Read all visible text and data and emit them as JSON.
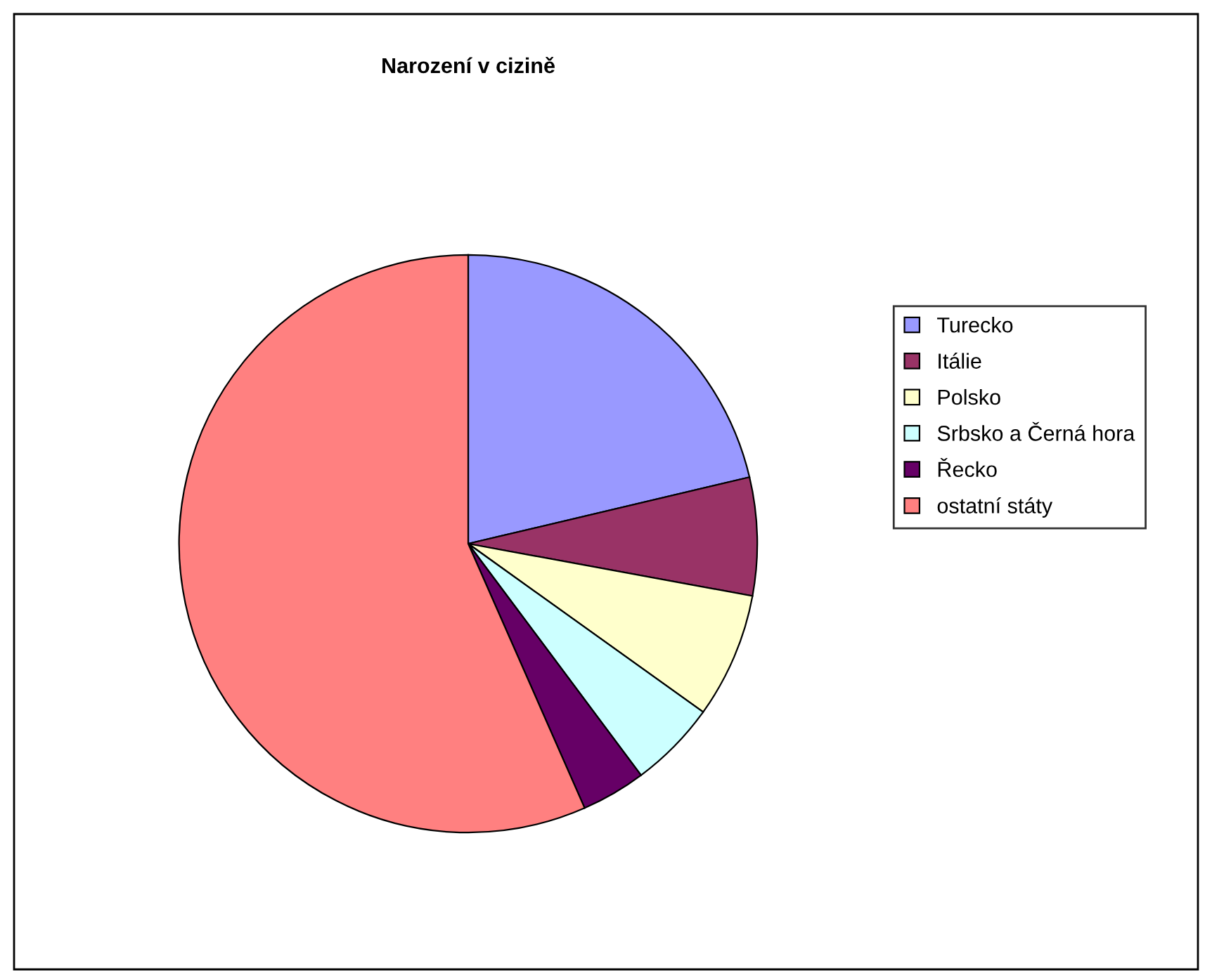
{
  "chart_data": {
    "type": "pie",
    "title": "Narození v cizině",
    "categories": [
      "Turecko",
      "Itálie",
      "Polsko",
      "Srbsko a Černá hora",
      "Řecko",
      "ostatní státy"
    ],
    "values": [
      21.3,
      6.6,
      7.0,
      4.9,
      3.6,
      56.6
    ],
    "colors": [
      "#9999ff",
      "#993366",
      "#ffffcc",
      "#ccffff",
      "#660066",
      "#ff8080"
    ],
    "legend": "right"
  }
}
